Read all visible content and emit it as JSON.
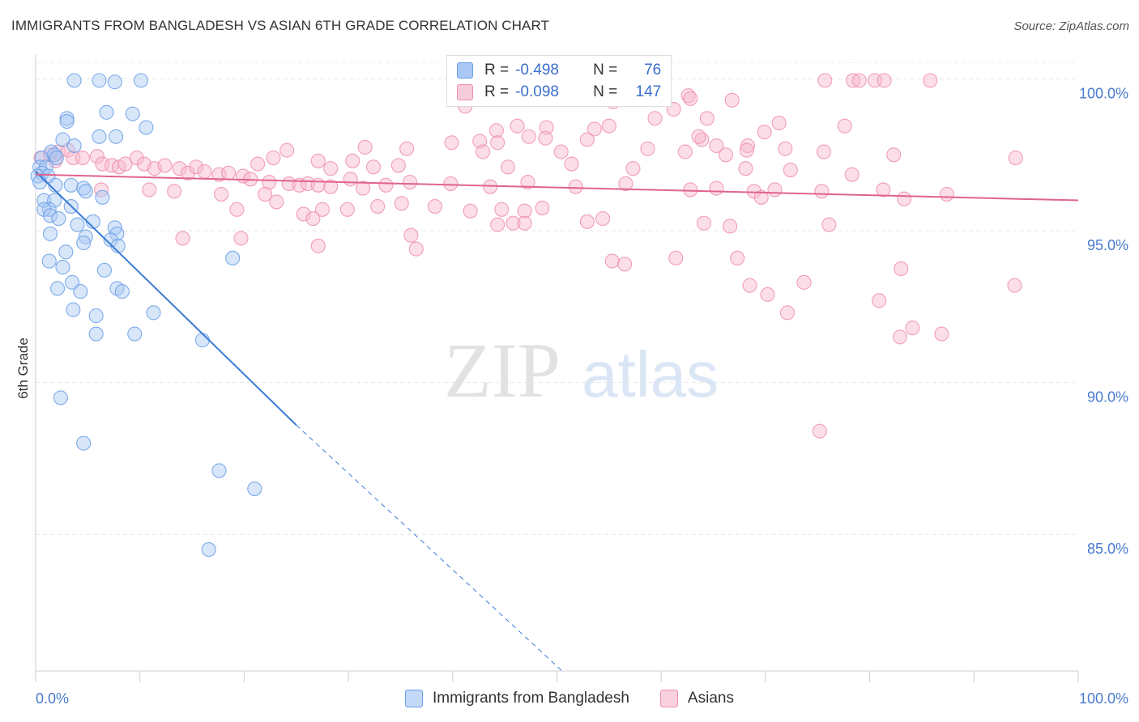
{
  "header": {
    "title": "IMMIGRANTS FROM BANGLADESH VS ASIAN 6TH GRADE CORRELATION CHART",
    "source": "Source: ZipAtlas.com"
  },
  "watermark": {
    "zip": "ZIP",
    "atlas": "atlas"
  },
  "legend": {
    "rows": [
      {
        "r_label": "R =",
        "r_value": "-0.498",
        "n_label": "N =",
        "n_value": "76",
        "color": "#a9c8f5"
      },
      {
        "r_label": "R =",
        "r_value": "-0.098",
        "n_label": "N =",
        "n_value": "147",
        "color": "#f7b6cb"
      }
    ]
  },
  "bottom_legend": [
    {
      "label": "Immigrants from Bangladesh",
      "color": "#a9c8f5"
    },
    {
      "label": "Asians",
      "color": "#f7b6cb"
    }
  ],
  "chart_data": {
    "type": "scatter",
    "title": "IMMIGRANTS FROM BANGLADESH VS ASIAN 6TH GRADE CORRELATION CHART",
    "xlabel": "",
    "ylabel": "6th Grade",
    "xlim": [
      0,
      100
    ],
    "ylim": [
      80.5,
      100.6
    ],
    "x_tick_labels": [
      "0.0%",
      "100.0%"
    ],
    "y_ticks": [
      {
        "value": 100,
        "label": "100.0%"
      },
      {
        "value": 95,
        "label": "95.0%"
      },
      {
        "value": 90,
        "label": "90.0%"
      },
      {
        "value": 85,
        "label": "85.0%"
      }
    ],
    "grid": true,
    "legend_position": "top-center",
    "series": [
      {
        "name": "Immigrants from Bangladesh",
        "color": "#6a9fe6",
        "fill": "#a9c8f5",
        "line_color": "#3a7bd5",
        "trend": {
          "x0": 0,
          "y0": 96.95,
          "x1": 25,
          "y1": 88.6,
          "dash_to_x": 50.5,
          "dash_to_y": 80.5
        },
        "points": [
          [
            3.7,
            99.95
          ],
          [
            6.1,
            99.95
          ],
          [
            7.6,
            99.9
          ],
          [
            10.1,
            99.95
          ],
          [
            6.8,
            98.9
          ],
          [
            9.3,
            98.85
          ],
          [
            3.0,
            98.7
          ],
          [
            3.0,
            98.6
          ],
          [
            10.6,
            98.4
          ],
          [
            2.6,
            98.0
          ],
          [
            6.1,
            98.1
          ],
          [
            7.7,
            98.1
          ],
          [
            3.7,
            97.8
          ],
          [
            1.5,
            97.6
          ],
          [
            0.6,
            97.4
          ],
          [
            1.8,
            97.5
          ],
          [
            2.0,
            97.4
          ],
          [
            0.4,
            97.1
          ],
          [
            1.0,
            97.1
          ],
          [
            0.6,
            96.9
          ],
          [
            0.2,
            96.8
          ],
          [
            1.2,
            96.8
          ],
          [
            0.4,
            96.6
          ],
          [
            1.9,
            96.5
          ],
          [
            3.4,
            96.5
          ],
          [
            4.6,
            96.4
          ],
          [
            4.8,
            96.3
          ],
          [
            0.8,
            96.0
          ],
          [
            1.8,
            96.0
          ],
          [
            6.4,
            96.1
          ],
          [
            1.3,
            95.7
          ],
          [
            0.8,
            95.7
          ],
          [
            3.4,
            95.8
          ],
          [
            1.4,
            95.5
          ],
          [
            2.2,
            95.4
          ],
          [
            5.5,
            95.3
          ],
          [
            4.0,
            95.2
          ],
          [
            7.6,
            95.1
          ],
          [
            1.4,
            94.9
          ],
          [
            7.8,
            94.9
          ],
          [
            4.8,
            94.8
          ],
          [
            7.2,
            94.7
          ],
          [
            4.6,
            94.6
          ],
          [
            7.9,
            94.5
          ],
          [
            2.9,
            94.3
          ],
          [
            1.3,
            94.0
          ],
          [
            2.6,
            93.8
          ],
          [
            6.6,
            93.7
          ],
          [
            18.9,
            94.1
          ],
          [
            3.5,
            93.3
          ],
          [
            2.1,
            93.1
          ],
          [
            4.3,
            93.0
          ],
          [
            7.8,
            93.1
          ],
          [
            8.3,
            93.0
          ],
          [
            3.6,
            92.4
          ],
          [
            11.3,
            92.3
          ],
          [
            5.8,
            92.2
          ],
          [
            5.8,
            91.6
          ],
          [
            9.5,
            91.6
          ],
          [
            16.0,
            91.4
          ],
          [
            2.4,
            89.5
          ],
          [
            4.6,
            88.0
          ],
          [
            17.6,
            87.1
          ],
          [
            21.0,
            86.5
          ],
          [
            16.6,
            84.5
          ]
        ]
      },
      {
        "name": "Asians",
        "color": "#ee8fae",
        "fill": "#f7b6cb",
        "line_color": "#e0638f",
        "trend": {
          "x0": 0,
          "y0": 96.85,
          "x1": 100,
          "y1": 96.0
        },
        "points": [
          [
            75.7,
            99.95
          ],
          [
            78.4,
            99.95
          ],
          [
            79.0,
            99.95
          ],
          [
            80.5,
            99.95
          ],
          [
            81.4,
            99.95
          ],
          [
            85.8,
            99.95
          ],
          [
            58.0,
            99.45
          ],
          [
            62.6,
            99.45
          ],
          [
            62.8,
            99.35
          ],
          [
            66.8,
            99.3
          ],
          [
            55.4,
            99.25
          ],
          [
            41.2,
            99.1
          ],
          [
            61.2,
            99.0
          ],
          [
            59.4,
            98.7
          ],
          [
            64.4,
            98.7
          ],
          [
            55.0,
            98.45
          ],
          [
            46.2,
            98.45
          ],
          [
            49.0,
            98.4
          ],
          [
            53.6,
            98.35
          ],
          [
            44.2,
            98.3
          ],
          [
            71.3,
            98.55
          ],
          [
            77.6,
            98.45
          ],
          [
            69.9,
            98.25
          ],
          [
            47.3,
            98.1
          ],
          [
            48.9,
            98.05
          ],
          [
            52.9,
            98.0
          ],
          [
            63.9,
            98.0
          ],
          [
            63.6,
            98.1
          ],
          [
            39.9,
            97.9
          ],
          [
            42.6,
            97.95
          ],
          [
            44.3,
            97.9
          ],
          [
            31.6,
            97.75
          ],
          [
            24.1,
            97.65
          ],
          [
            35.6,
            97.7
          ],
          [
            58.7,
            97.7
          ],
          [
            65.3,
            97.8
          ],
          [
            68.3,
            97.8
          ],
          [
            42.9,
            97.6
          ],
          [
            50.4,
            97.6
          ],
          [
            62.3,
            97.6
          ],
          [
            66.2,
            97.5
          ],
          [
            68.2,
            97.65
          ],
          [
            71.9,
            97.7
          ],
          [
            75.6,
            97.6
          ],
          [
            82.3,
            97.5
          ],
          [
            94.0,
            97.4
          ],
          [
            22.8,
            97.4
          ],
          [
            27.1,
            97.3
          ],
          [
            30.4,
            97.3
          ],
          [
            21.3,
            97.2
          ],
          [
            28.3,
            97.05
          ],
          [
            32.4,
            97.1
          ],
          [
            34.8,
            97.15
          ],
          [
            45.3,
            97.1
          ],
          [
            51.4,
            97.2
          ],
          [
            57.3,
            97.05
          ],
          [
            68.1,
            97.05
          ],
          [
            72.4,
            97.0
          ],
          [
            78.3,
            96.85
          ],
          [
            0.5,
            97.4
          ],
          [
            1.4,
            97.5
          ],
          [
            2.2,
            97.6
          ],
          [
            3.1,
            97.65
          ],
          [
            1.9,
            97.3
          ],
          [
            3.6,
            97.4
          ],
          [
            4.5,
            97.4
          ],
          [
            5.9,
            97.45
          ],
          [
            6.4,
            97.2
          ],
          [
            7.3,
            97.15
          ],
          [
            8.0,
            97.1
          ],
          [
            8.6,
            97.2
          ],
          [
            9.7,
            97.4
          ],
          [
            10.4,
            97.2
          ],
          [
            11.4,
            97.05
          ],
          [
            12.4,
            97.15
          ],
          [
            13.8,
            97.05
          ],
          [
            14.6,
            96.9
          ],
          [
            15.4,
            97.1
          ],
          [
            16.2,
            96.95
          ],
          [
            17.6,
            96.85
          ],
          [
            18.5,
            96.9
          ],
          [
            19.9,
            96.8
          ],
          [
            20.6,
            96.7
          ],
          [
            22.4,
            96.6
          ],
          [
            24.3,
            96.55
          ],
          [
            25.3,
            96.5
          ],
          [
            26.1,
            96.55
          ],
          [
            27.1,
            96.5
          ],
          [
            28.3,
            96.45
          ],
          [
            30.2,
            96.7
          ],
          [
            31.4,
            96.4
          ],
          [
            33.6,
            96.5
          ],
          [
            35.9,
            96.6
          ],
          [
            39.8,
            96.55
          ],
          [
            43.6,
            96.45
          ],
          [
            47.2,
            96.6
          ],
          [
            51.8,
            96.45
          ],
          [
            56.6,
            96.55
          ],
          [
            62.8,
            96.35
          ],
          [
            65.3,
            96.4
          ],
          [
            68.9,
            96.3
          ],
          [
            70.9,
            96.35
          ],
          [
            75.4,
            96.3
          ],
          [
            81.3,
            96.35
          ],
          [
            87.4,
            96.2
          ],
          [
            69.6,
            96.1
          ],
          [
            83.3,
            96.05
          ],
          [
            6.3,
            96.35
          ],
          [
            10.9,
            96.35
          ],
          [
            13.3,
            96.3
          ],
          [
            17.8,
            96.2
          ],
          [
            22.0,
            96.2
          ],
          [
            23.1,
            95.95
          ],
          [
            27.5,
            95.7
          ],
          [
            29.9,
            95.7
          ],
          [
            32.8,
            95.8
          ],
          [
            35.1,
            95.9
          ],
          [
            38.3,
            95.8
          ],
          [
            41.7,
            95.65
          ],
          [
            44.7,
            95.7
          ],
          [
            46.9,
            95.65
          ],
          [
            48.6,
            95.75
          ],
          [
            19.3,
            95.7
          ],
          [
            25.7,
            95.55
          ],
          [
            26.6,
            95.4
          ],
          [
            44.3,
            95.2
          ],
          [
            45.8,
            95.25
          ],
          [
            46.9,
            95.25
          ],
          [
            52.9,
            95.3
          ],
          [
            54.4,
            95.4
          ],
          [
            64.1,
            95.25
          ],
          [
            66.6,
            95.15
          ],
          [
            76.1,
            95.2
          ],
          [
            36.0,
            94.85
          ],
          [
            14.1,
            94.75
          ],
          [
            19.7,
            94.75
          ],
          [
            27.1,
            94.5
          ],
          [
            36.5,
            94.4
          ],
          [
            55.3,
            94.0
          ],
          [
            56.5,
            93.9
          ],
          [
            61.4,
            94.1
          ],
          [
            67.3,
            94.1
          ],
          [
            83.0,
            93.75
          ],
          [
            68.5,
            93.2
          ],
          [
            73.7,
            93.3
          ],
          [
            70.2,
            92.9
          ],
          [
            72.1,
            92.3
          ],
          [
            93.9,
            93.2
          ],
          [
            82.9,
            91.5
          ],
          [
            80.9,
            92.7
          ],
          [
            84.1,
            91.8
          ],
          [
            86.9,
            91.6
          ],
          [
            75.2,
            88.4
          ]
        ]
      }
    ]
  }
}
